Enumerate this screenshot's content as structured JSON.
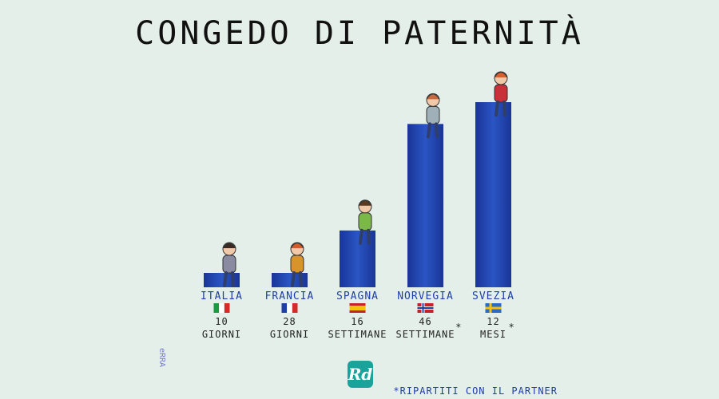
{
  "chart_data": {
    "type": "bar",
    "title": "CONGEDO DI PATERNITÀ",
    "categories": [
      "ITALIA",
      "FRANCIA",
      "SPAGNA",
      "NORVEGIA",
      "SVEZIA"
    ],
    "values_days": [
      10,
      28,
      112,
      322,
      365
    ],
    "value_labels": [
      {
        "amount": "10",
        "unit": "GIORNI",
        "asterisk": ""
      },
      {
        "amount": "28",
        "unit": "GIORNI",
        "asterisk": ""
      },
      {
        "amount": "16",
        "unit": "SETTIMANE",
        "asterisk": ""
      },
      {
        "amount": "46",
        "unit": "SETTIMANE",
        "asterisk": "*"
      },
      {
        "amount": "12",
        "unit": "MESI",
        "asterisk": "*"
      }
    ],
    "bar_color": "#1e3fa6",
    "bar_color_light": "#2b56c6",
    "flags": [
      "italy-flag",
      "france-flag",
      "spain-flag",
      "norway-flag",
      "sweden-flag"
    ],
    "footnote": "*RIPARTITI CON IL PARTNER",
    "signature": "eRRA",
    "logo": "Rd",
    "logo_color": "#1aa39a"
  }
}
